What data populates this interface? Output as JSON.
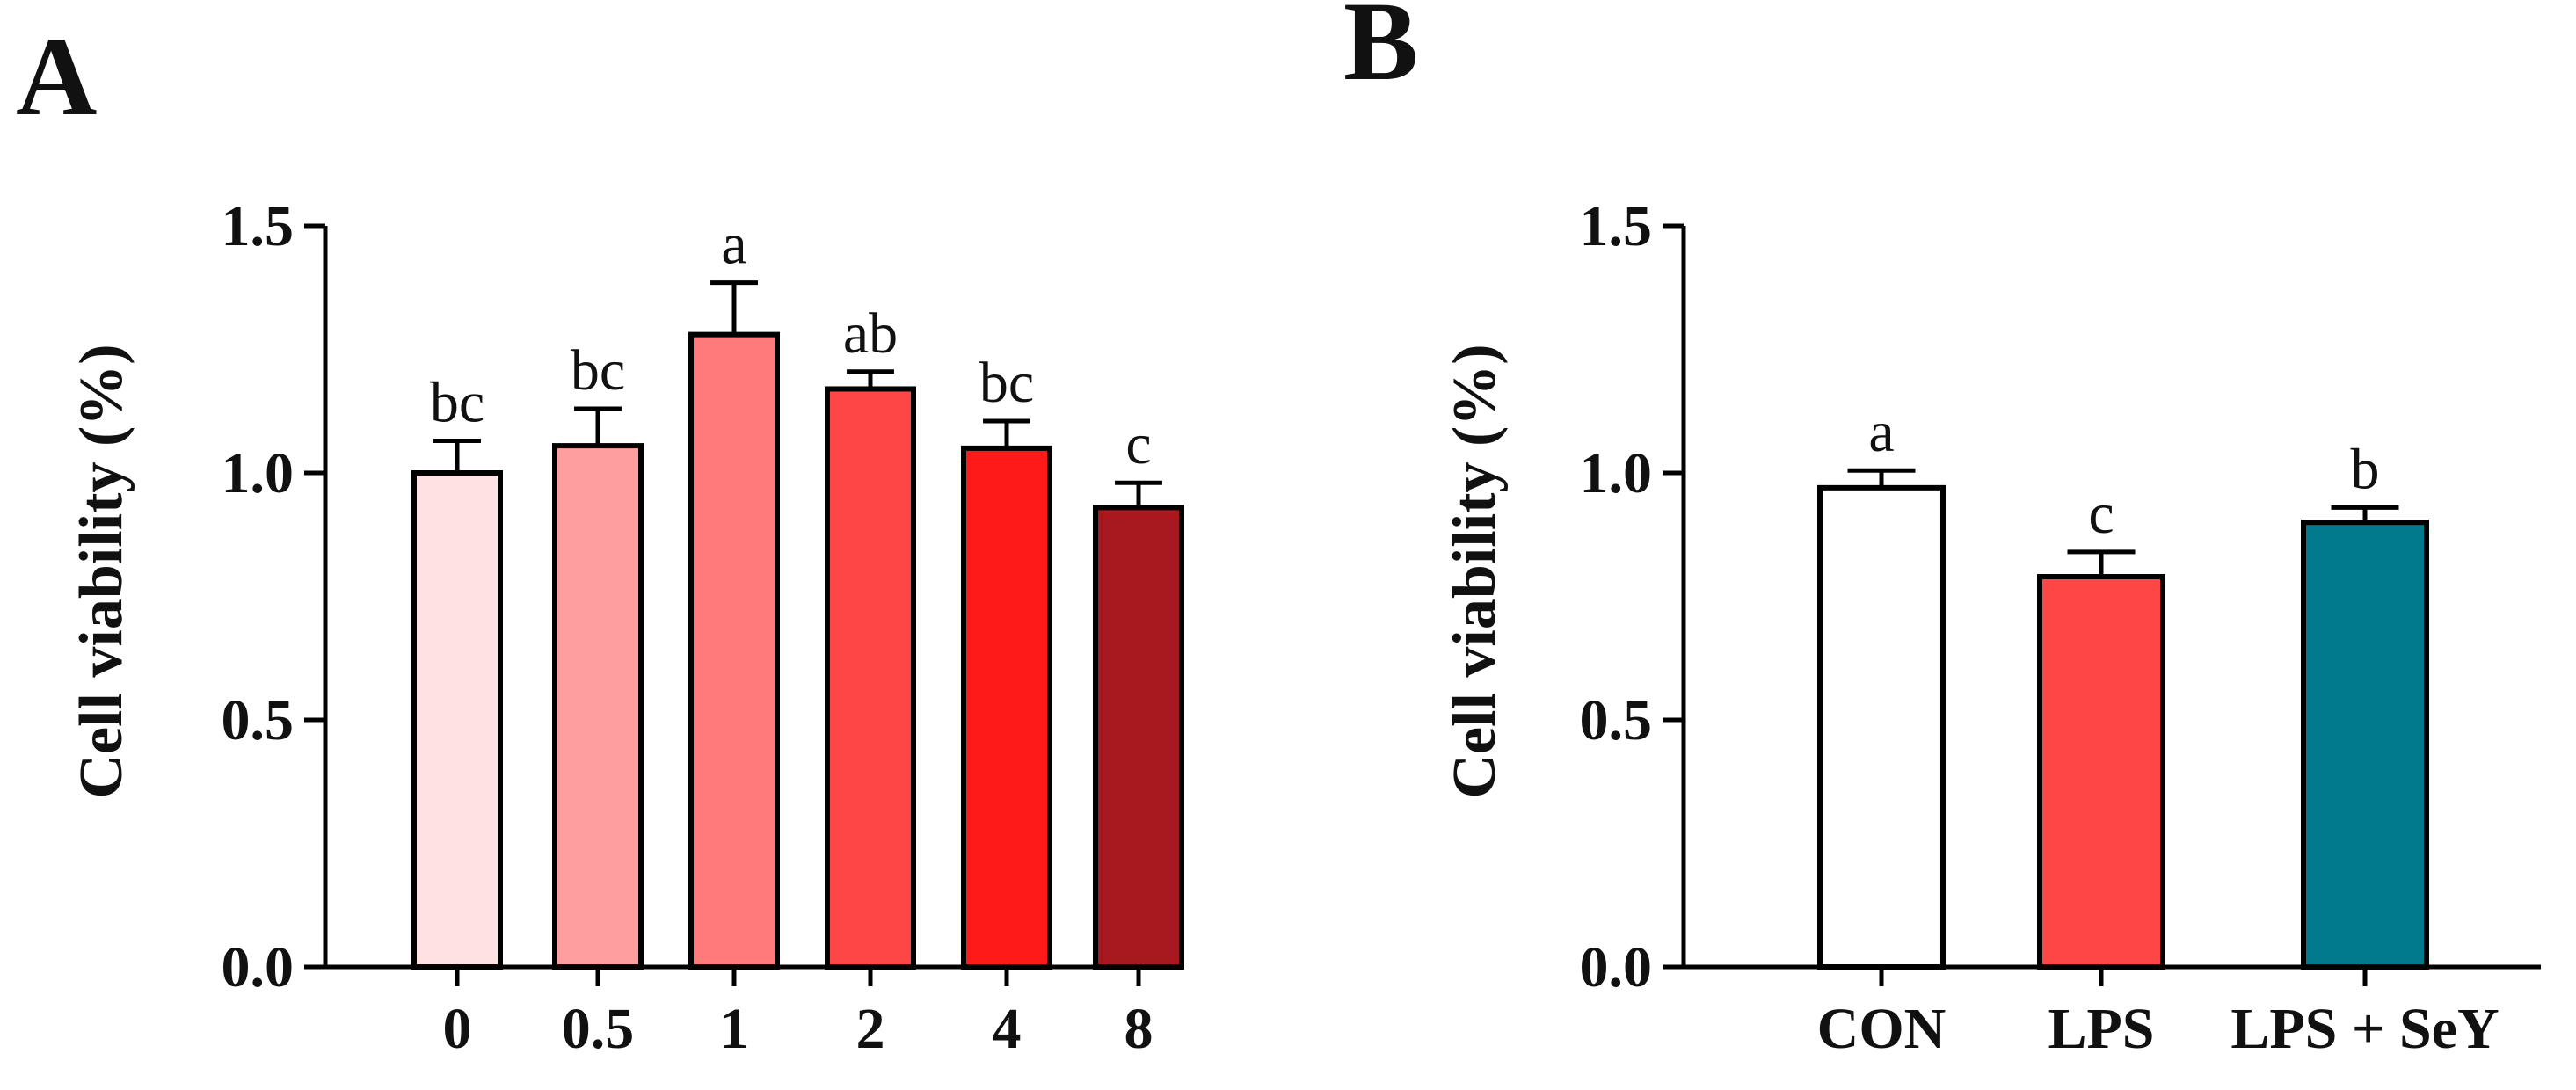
{
  "panels": [
    {
      "letter": "A",
      "chart_data": {
        "type": "bar",
        "categories": [
          "0",
          "0.5",
          "1",
          "2",
          "4",
          "8"
        ],
        "values": [
          1.0,
          1.055,
          1.28,
          1.17,
          1.05,
          0.93
        ],
        "errors": [
          0.065,
          0.075,
          0.105,
          0.035,
          0.055,
          0.05
        ],
        "significance": [
          "bc",
          "bc",
          "a",
          "ab",
          "bc",
          "c"
        ],
        "colors": [
          "#FFE1E3",
          "#FF9E9E",
          "#FF7A7A",
          "#FF4646",
          "#FF1A1A",
          "#A8181F"
        ],
        "ylabel": "Cell viability (%)",
        "xlabel": "",
        "ylim": [
          0,
          1.5
        ],
        "yticks": [
          "0.0",
          "0.5",
          "1.0",
          "1.5"
        ],
        "ytick_values": [
          0,
          0.5,
          1.0,
          1.5
        ]
      }
    },
    {
      "letter": "B",
      "chart_data": {
        "type": "bar",
        "categories": [
          "CON",
          "LPS",
          "LPS + SeY"
        ],
        "values": [
          0.97,
          0.79,
          0.9
        ],
        "errors": [
          0.035,
          0.05,
          0.03
        ],
        "significance": [
          "a",
          "c",
          "b"
        ],
        "colors": [
          "#FFFFFF",
          "#FF4646",
          "#007A8C"
        ],
        "ylabel": "Cell viability (%)",
        "xlabel": "",
        "ylim": [
          0,
          1.5
        ],
        "yticks": [
          "0.0",
          "0.5",
          "1.0",
          "1.5"
        ],
        "ytick_values": [
          0,
          0.5,
          1.0,
          1.5
        ]
      }
    }
  ]
}
